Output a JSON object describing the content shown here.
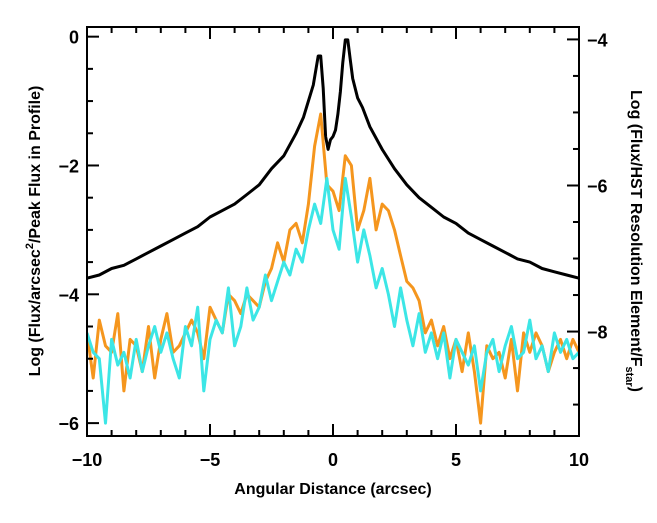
{
  "chart_data": {
    "type": "line",
    "title": "",
    "xlabel": "Angular Distance (arcsec)",
    "ylabel_left": {
      "pre": "Log (Flux/arcsec",
      "sup": "2",
      "post": "/Peak Flux in Profile)"
    },
    "ylabel_right": {
      "pre": "Log (Flux/HST Resolution Element/F",
      "sub": "star",
      "post": ")"
    },
    "xlim": [
      -10,
      10
    ],
    "ylim": [
      -6.2,
      0.15
    ],
    "y2lim": [
      -9.43,
      -3.83
    ],
    "x_ticks": [
      -10,
      -5,
      0,
      5,
      10
    ],
    "x_tick_labels": [
      "−10",
      "−5",
      "0",
      "5",
      "10"
    ],
    "y_ticks": [
      0,
      -2,
      -4,
      -6
    ],
    "y_tick_labels": [
      "0",
      "−2",
      "−4",
      "−6"
    ],
    "y2_ticks": [
      -4,
      -6,
      -8
    ],
    "y2_tick_labels": [
      "−4",
      "−6",
      "−8"
    ],
    "grid": false,
    "legend": "none",
    "series": [
      {
        "color": "#000000",
        "x": [
          -10,
          -9.5,
          -9,
          -8.5,
          -8,
          -7.5,
          -7,
          -6.5,
          -6,
          -5.5,
          -5,
          -4.5,
          -4,
          -3.5,
          -3,
          -2.5,
          -2,
          -1.5,
          -1.2,
          -1,
          -0.8,
          -0.6,
          -0.5,
          -0.4,
          -0.3,
          -0.2,
          -0.1,
          0,
          0.1,
          0.2,
          0.3,
          0.4,
          0.5,
          0.6,
          0.7,
          0.8,
          1,
          1.2,
          1.5,
          2,
          2.5,
          3,
          3.5,
          4,
          4.5,
          5,
          5.5,
          6,
          6.5,
          7,
          7.5,
          8,
          8.5,
          9,
          9.5,
          10
        ],
        "values": [
          -3.75,
          -3.7,
          -3.6,
          -3.55,
          -3.45,
          -3.35,
          -3.25,
          -3.15,
          -3.05,
          -2.95,
          -2.8,
          -2.7,
          -2.6,
          -2.45,
          -2.3,
          -2.05,
          -1.85,
          -1.5,
          -1.25,
          -1.0,
          -0.75,
          -0.3,
          -0.3,
          -0.8,
          -1.55,
          -1.75,
          -1.6,
          -1.55,
          -1.45,
          -1.2,
          -0.85,
          -0.4,
          -0.05,
          -0.05,
          -0.35,
          -0.65,
          -0.95,
          -1.1,
          -1.4,
          -1.75,
          -2.05,
          -2.3,
          -2.5,
          -2.65,
          -2.8,
          -2.9,
          -3.05,
          -3.15,
          -3.25,
          -3.35,
          -3.45,
          -3.5,
          -3.6,
          -3.65,
          -3.7,
          -3.75
        ]
      },
      {
        "color": "#f5961e",
        "x": [
          -10,
          -9.75,
          -9.5,
          -9.25,
          -9,
          -8.75,
          -8.5,
          -8.25,
          -8,
          -7.75,
          -7.5,
          -7.25,
          -7,
          -6.75,
          -6.5,
          -6.25,
          -6,
          -5.75,
          -5.5,
          -5.25,
          -5,
          -4.75,
          -4.5,
          -4.25,
          -4,
          -3.75,
          -3.5,
          -3.25,
          -3,
          -2.75,
          -2.5,
          -2.25,
          -2,
          -1.75,
          -1.5,
          -1.25,
          -1,
          -0.75,
          -0.5,
          -0.25,
          0,
          0.25,
          0.5,
          0.75,
          1,
          1.25,
          1.5,
          1.75,
          2,
          2.25,
          2.5,
          2.75,
          3,
          3.25,
          3.5,
          3.75,
          4,
          4.25,
          4.5,
          4.75,
          5,
          5.25,
          5.5,
          5.75,
          6,
          6.25,
          6.5,
          6.75,
          7,
          7.25,
          7.5,
          7.75,
          8,
          8.25,
          8.5,
          8.75,
          9,
          9.25,
          9.5,
          9.75,
          10
        ],
        "values": [
          -4.6,
          -5.3,
          -4.4,
          -4.8,
          -4.9,
          -4.3,
          -5.5,
          -4.7,
          -4.8,
          -5.2,
          -4.5,
          -5.3,
          -4.7,
          -4.3,
          -4.9,
          -4.8,
          -4.6,
          -4.4,
          -4.6,
          -5.0,
          -4.2,
          -4.4,
          -4.6,
          -4.0,
          -4.1,
          -4.3,
          -4.0,
          -4.1,
          -4.2,
          -3.8,
          -3.6,
          -3.2,
          -3.5,
          -3.0,
          -2.9,
          -3.2,
          -2.6,
          -1.7,
          -1.2,
          -2.3,
          -2.4,
          -2.7,
          -1.85,
          -2.0,
          -3.0,
          -2.7,
          -2.2,
          -3.0,
          -2.6,
          -2.7,
          -3.0,
          -3.4,
          -3.8,
          -3.9,
          -4.1,
          -4.6,
          -4.4,
          -4.8,
          -4.5,
          -5.0,
          -4.7,
          -5.2,
          -4.6,
          -5.2,
          -6.0,
          -4.8,
          -5.0,
          -4.9,
          -5.3,
          -4.7,
          -5.5,
          -4.6,
          -4.9,
          -4.6,
          -4.8,
          -5.2,
          -4.9,
          -4.7,
          -5.0,
          -4.7,
          -4.9
        ]
      },
      {
        "color": "#3ce6e6",
        "x": [
          -10,
          -9.75,
          -9.5,
          -9.25,
          -9,
          -8.75,
          -8.5,
          -8.25,
          -8,
          -7.75,
          -7.5,
          -7.25,
          -7,
          -6.75,
          -6.5,
          -6.25,
          -6,
          -5.75,
          -5.5,
          -5.25,
          -5,
          -4.75,
          -4.5,
          -4.25,
          -4,
          -3.75,
          -3.5,
          -3.25,
          -3,
          -2.75,
          -2.5,
          -2.25,
          -2,
          -1.75,
          -1.5,
          -1.25,
          -1,
          -0.75,
          -0.5,
          -0.25,
          0,
          0.25,
          0.5,
          0.75,
          1,
          1.25,
          1.5,
          1.75,
          2,
          2.25,
          2.5,
          2.75,
          3,
          3.25,
          3.5,
          3.75,
          4,
          4.25,
          4.5,
          4.75,
          5,
          5.25,
          5.5,
          5.75,
          6,
          6.25,
          6.5,
          6.75,
          7,
          7.25,
          7.5,
          7.75,
          8,
          8.25,
          8.5,
          8.75,
          9,
          9.25,
          9.5,
          9.75,
          10
        ],
        "values": [
          -4.6,
          -4.9,
          -5.0,
          -6.0,
          -4.7,
          -5.1,
          -4.9,
          -5.3,
          -4.7,
          -5.2,
          -4.8,
          -4.5,
          -4.9,
          -4.6,
          -5.0,
          -5.3,
          -4.5,
          -4.8,
          -4.2,
          -5.5,
          -4.7,
          -4.4,
          -4.6,
          -3.9,
          -4.8,
          -4.5,
          -3.9,
          -4.4,
          -4.2,
          -3.7,
          -4.1,
          -3.8,
          -3.5,
          -3.7,
          -3.3,
          -3.5,
          -3.0,
          -2.6,
          -2.9,
          -2.2,
          -3.0,
          -3.3,
          -2.2,
          -2.8,
          -3.5,
          -3.0,
          -3.4,
          -3.9,
          -3.6,
          -4.0,
          -4.5,
          -3.9,
          -4.4,
          -4.8,
          -4.3,
          -4.9,
          -4.6,
          -5.0,
          -4.6,
          -5.3,
          -4.7,
          -4.9,
          -5.1,
          -4.8,
          -5.5,
          -4.9,
          -4.7,
          -5.2,
          -4.8,
          -4.5,
          -5.0,
          -4.9,
          -4.4,
          -5.0,
          -4.8,
          -5.2,
          -4.6,
          -4.9,
          -4.7,
          -5.0,
          -4.9
        ]
      }
    ]
  }
}
